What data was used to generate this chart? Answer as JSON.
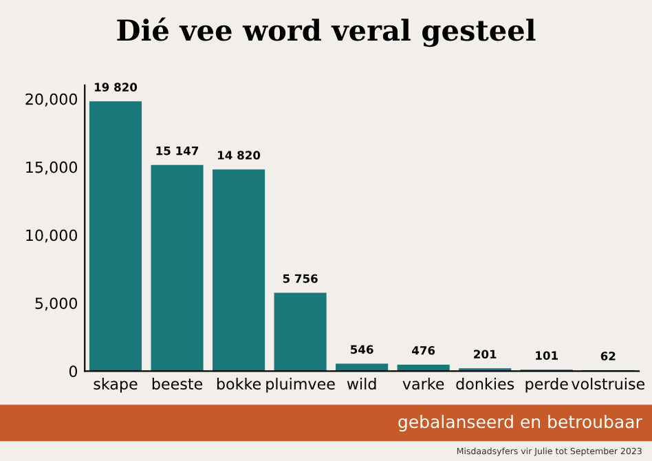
{
  "chart_data": {
    "type": "bar",
    "title": "Dié vee word veral gesteel",
    "categories": [
      "skape",
      "beeste",
      "bokke",
      "pluimvee",
      "wild",
      "varke",
      "donkies",
      "perde",
      "volstruise"
    ],
    "values": [
      19820,
      15147,
      14820,
      5756,
      546,
      476,
      201,
      101,
      62
    ],
    "value_labels": [
      "19 820",
      "15 147",
      "14 820",
      "5 756",
      "546",
      "476",
      "201",
      "101",
      "62"
    ],
    "color": "#19787a",
    "ylim": [
      0,
      21000
    ],
    "yticks": [
      0,
      {
        "value": 5000,
        "label": "5,000"
      },
      {
        "value": 10000,
        "label": "10,000"
      },
      {
        "value": 15000,
        "label": "15,000"
      },
      {
        "value": 20000,
        "label": "20,000"
      }
    ],
    "grid": false,
    "annotations": [
      "gebalanseerd en betroubaar",
      "Misdaadsyfers vir Julie tot September 2023"
    ]
  }
}
